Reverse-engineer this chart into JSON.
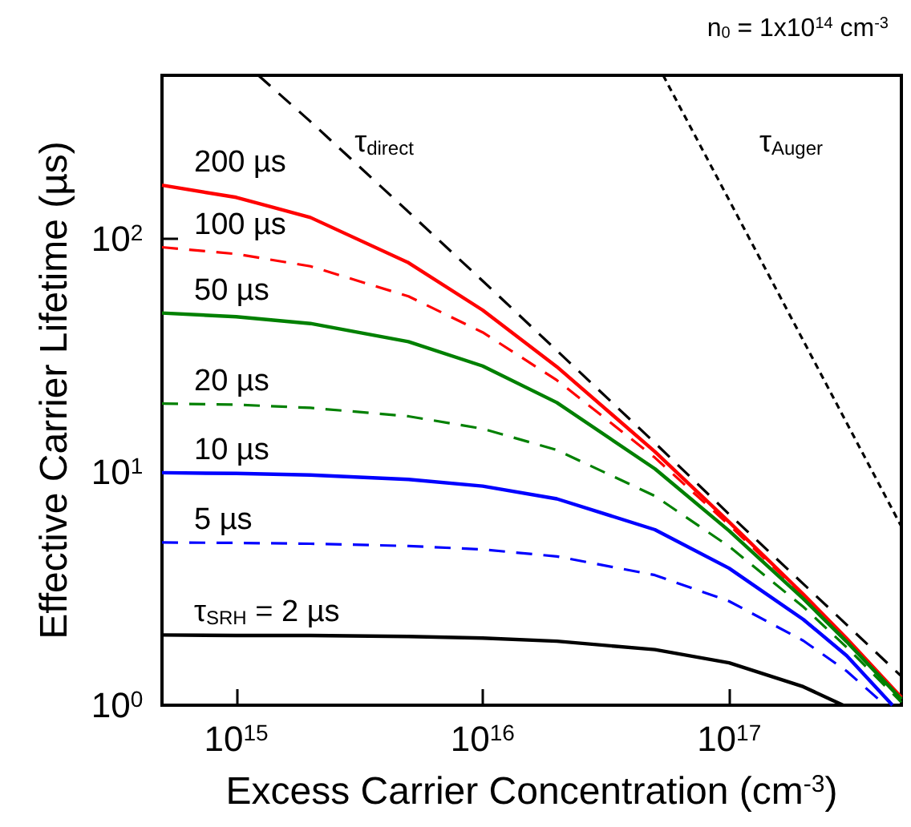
{
  "chart_data": {
    "type": "line",
    "xlabel": "Excess Carrier Concentration (cm$^{-3}$)",
    "ylabel": "Effective Carrier Lifetime (µs)",
    "log": "xy",
    "xlim": [
      500000000000000.0,
      5e+17
    ],
    "ylim": [
      1,
      500
    ],
    "xticks": [
      {
        "value": 1000000000000000.0,
        "label": "10$^{15}$"
      },
      {
        "value": 1e+16,
        "label": "10$^{16}$"
      },
      {
        "value": 1e+17,
        "label": "10$^{17}$"
      }
    ],
    "yticks": [
      {
        "value": 1,
        "label": "10$^{0}$"
      },
      {
        "value": 10,
        "label": "10$^{1}$"
      },
      {
        "value": 100,
        "label": "10$^{2}$"
      }
    ],
    "series": [
      {
        "name": "200 µs",
        "color": "#ff0000",
        "line_style": "solid",
        "x": [
          500000000000000.0,
          1000000000000000.0,
          2000000000000000.0,
          5000000000000000.0,
          1e+16,
          2e+16,
          5e+16,
          1e+17,
          2e+17,
          3e+17,
          5e+17
        ],
        "values": [
          169,
          150,
          123,
          78.7,
          49.3,
          28.2,
          12.2,
          6.1,
          2.99,
          1.93,
          1.08
        ]
      },
      {
        "name": "100 µs",
        "color": "#ff0000",
        "line_style": "dashed",
        "x": [
          500000000000000.0,
          1000000000000000.0,
          2000000000000000.0,
          5000000000000000.0,
          1e+16,
          2e+16,
          5e+16,
          1e+17,
          2e+17,
          3e+17,
          5e+17
        ],
        "values": [
          91.7,
          85.8,
          76,
          56.5,
          39.6,
          24.7,
          11.5,
          5.92,
          2.95,
          1.91,
          1.07
        ]
      },
      {
        "name": "50 µs",
        "color": "#008000",
        "line_style": "solid",
        "x": [
          500000000000000.0,
          1000000000000000.0,
          2000000000000000.0,
          5000000000000000.0,
          1e+16,
          2e+16,
          5e+16,
          1e+17,
          2e+17,
          3e+17,
          5e+17
        ],
        "values": [
          47.9,
          46.2,
          43.2,
          36.1,
          28.4,
          19.8,
          10.3,
          5.59,
          2.86,
          1.87,
          1.06
        ]
      },
      {
        "name": "20 µs",
        "color": "#008000",
        "line_style": "dashed",
        "x": [
          500000000000000.0,
          1000000000000000.0,
          2000000000000000.0,
          5000000000000000.0,
          1e+16,
          2e+16,
          5e+16,
          1e+17,
          2e+17,
          3e+17,
          5e+17
        ],
        "values": [
          19.6,
          19.4,
          18.8,
          17.3,
          15.3,
          12.4,
          7.88,
          4.79,
          2.64,
          1.77,
          1.03
        ]
      },
      {
        "name": "10 µs",
        "color": "#0000ff",
        "line_style": "solid",
        "x": [
          500000000000000.0,
          1000000000000000.0,
          2000000000000000.0,
          5000000000000000.0,
          1e+16,
          2e+16,
          5e+16,
          1e+17,
          2e+17,
          3e+17,
          4.6e+17
        ],
        "values": [
          9.91,
          9.84,
          9.69,
          9.28,
          8.68,
          7.66,
          5.65,
          3.86,
          2.33,
          1.63,
          1.0
        ]
      },
      {
        "name": "5 µs",
        "color": "#0000ff",
        "line_style": "dashed",
        "x": [
          500000000000000.0,
          1000000000000000.0,
          2000000000000000.0,
          5000000000000000.0,
          1e+16,
          2e+16,
          5e+16,
          1e+17,
          2e+17,
          3e+17,
          4.3e+17
        ],
        "values": [
          4.98,
          4.96,
          4.92,
          4.81,
          4.65,
          4.34,
          3.61,
          2.79,
          1.89,
          1.4,
          1.0
        ]
      },
      {
        "name": "τ$_{SRH}$ = 2 µs",
        "color": "#000000",
        "line_style": "solid",
        "x": [
          500000000000000.0,
          1000000000000000.0,
          2000000000000000.0,
          5000000000000000.0,
          1e+16,
          2e+16,
          5e+16,
          1e+17,
          2e+17,
          2.9e+17
        ],
        "values": [
          2.0,
          1.99,
          1.99,
          1.97,
          1.94,
          1.88,
          1.73,
          1.52,
          1.2,
          1.0
        ]
      },
      {
        "name": "τ$_{direct}$",
        "color": "#000000",
        "line_style": "dashed",
        "x": [
          1230000000000000.0,
          2000000000000000.0,
          5000000000000000.0,
          1e+16,
          2e+16,
          5e+16,
          1e+17,
          2e+17,
          5e+17
        ],
        "values": [
          500,
          317,
          130,
          65.8,
          33.1,
          13.3,
          6.58,
          3.31,
          1.33
        ]
      },
      {
        "name": "τ$_{Auger}$",
        "color": "#000000",
        "line_style": "dotted",
        "x": [
          5.4e+16,
          1e+17,
          2e+17,
          3e+17,
          5e+17
        ],
        "values": [
          500,
          146,
          36.5,
          16.2,
          5.83
        ]
      }
    ],
    "annotations": [
      "n$_{0}$ = 1x10$^{14}$ cm$^{-3}$"
    ]
  }
}
